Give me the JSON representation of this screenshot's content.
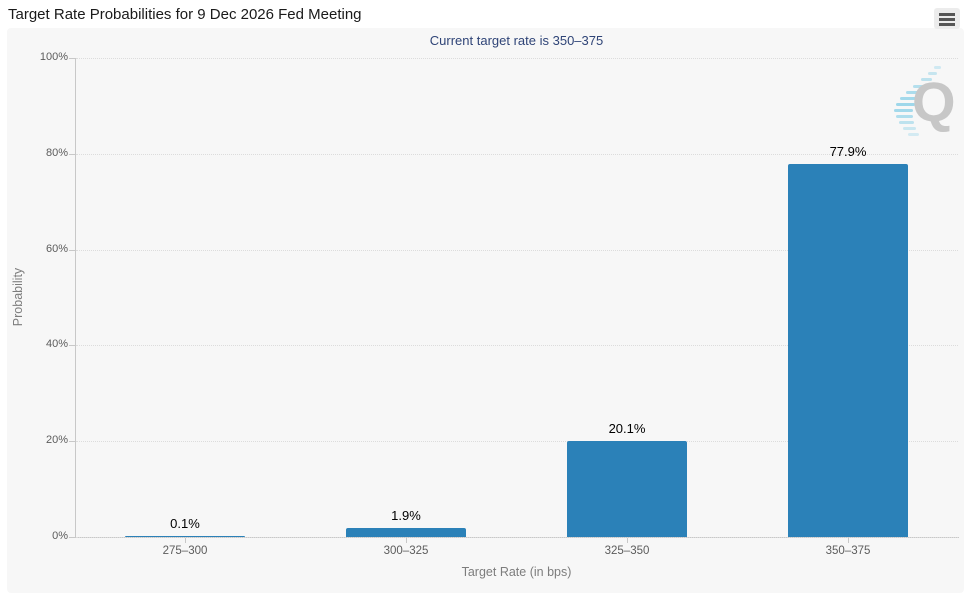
{
  "header": {
    "menu_tooltip": "Chart context menu"
  },
  "watermark": {
    "letter": "Q"
  },
  "chart_data": {
    "type": "bar",
    "title": "Target Rate Probabilities for 9 Dec 2026 Fed Meeting",
    "subtitle": "Current target rate is 350–375",
    "categories": [
      "275–300",
      "300–325",
      "325–350",
      "350–375"
    ],
    "values": [
      0.1,
      1.9,
      20.1,
      77.9
    ],
    "data_labels": [
      "0.1%",
      "1.9%",
      "20.1%",
      "77.9%"
    ],
    "xlabel": "Target Rate (in bps)",
    "ylabel": "Probability",
    "ylim": [
      0,
      100
    ],
    "yticks": [
      0,
      20,
      40,
      60,
      80,
      100
    ],
    "ytick_labels": [
      "0%",
      "20%",
      "40%",
      "60%",
      "80%",
      "100%"
    ],
    "grid": "horizontal-dotted",
    "legend": "none",
    "bar_color": "#2b81b8"
  },
  "colors": {
    "page": "#ffffff",
    "panel": "#f7f7f7",
    "title": "#1a1a1a",
    "subtitle": "#2f4477",
    "bar": "#2b81b8",
    "grid": "#dcdcdc",
    "axis_line": "#c8c8c8",
    "tick_label": "#5c5c5c",
    "axis_title": "#7d7d7d",
    "data_label": "#000000",
    "watermark_q": "#c7c7c7",
    "swoosh": "#9ed7ea"
  }
}
